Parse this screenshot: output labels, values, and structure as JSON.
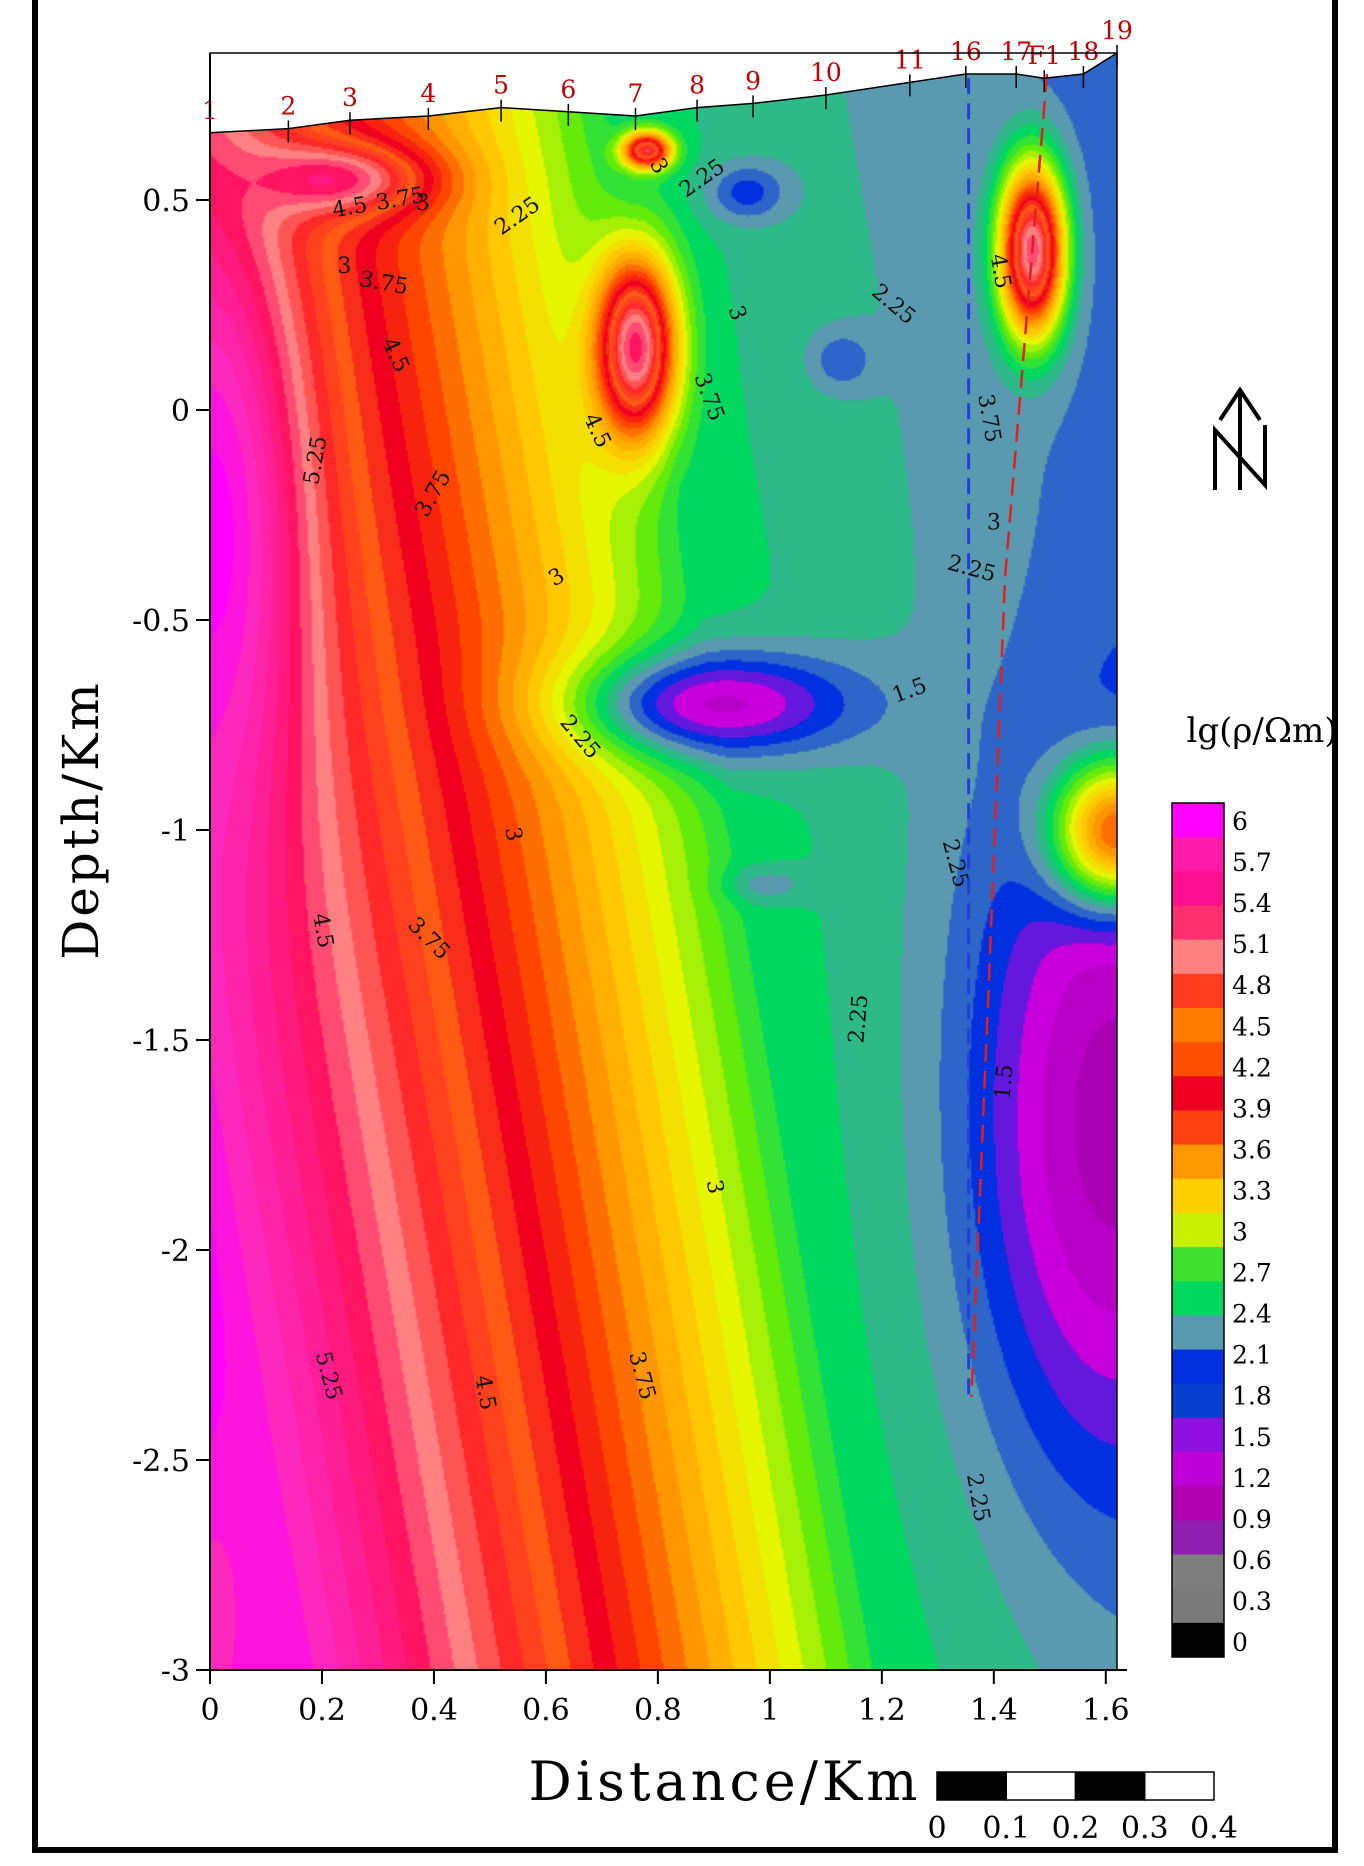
{
  "chart_data": {
    "type": "heatmap",
    "title": "",
    "xlabel": "Distance/Km",
    "ylabel": "Depth/Km",
    "xlim": [
      0,
      1.62
    ],
    "ylim": [
      -3,
      0.85
    ],
    "x_ticks": [
      "0",
      "0.2",
      "0.4",
      "0.6",
      "0.8",
      "1",
      "1.2",
      "1.4",
      "1.6"
    ],
    "x_tick_values": [
      0,
      0.2,
      0.4,
      0.6,
      0.8,
      1.0,
      1.2,
      1.4,
      1.6
    ],
    "y_ticks": [
      "0.5",
      "0",
      "-0.5",
      "-1",
      "-1.5",
      "-2",
      "-2.5",
      "-3"
    ],
    "y_tick_values": [
      0.5,
      0,
      -0.5,
      -1,
      -1.5,
      -2,
      -2.5,
      -3
    ],
    "colorbar": {
      "title": "lg(ρ/Ωm)",
      "labels": [
        "6",
        "5.7",
        "5.4",
        "5.1",
        "4.8",
        "4.5",
        "4.2",
        "3.9",
        "3.6",
        "3.3",
        "3",
        "2.7",
        "2.4",
        "2.1",
        "1.8",
        "1.5",
        "1.2",
        "0.9",
        "0.6",
        "0.3",
        "0"
      ],
      "colors": [
        "#ff00ff",
        "#ff1aa8",
        "#ff0f8f",
        "#ff2f6e",
        "#ff8080",
        "#ff3b1f",
        "#ff7a00",
        "#ff5000",
        "#f00020",
        "#ff4010",
        "#ff9800",
        "#ffd000",
        "#c8f000",
        "#40e030",
        "#00d860",
        "#5a9ab0",
        "#0030e0",
        "#0840d0",
        "#9010e0",
        "#c000d8",
        "#b000b0",
        "#9020b0",
        "#7f7f7f",
        "#7a7a7a",
        "#000000"
      ]
    },
    "stations": [
      "1",
      "2",
      "3",
      "4",
      "5",
      "6",
      "7",
      "8",
      "9",
      "10",
      "11",
      "16",
      "17",
      "F1",
      "18",
      "19"
    ],
    "station_x": [
      0,
      0.14,
      0.25,
      0.39,
      0.52,
      0.64,
      0.76,
      0.87,
      0.97,
      1.1,
      1.25,
      1.35,
      1.44,
      1.49,
      1.56,
      1.62
    ],
    "surface_elevation": [
      0.66,
      0.67,
      0.69,
      0.7,
      0.72,
      0.71,
      0.7,
      0.72,
      0.73,
      0.75,
      0.78,
      0.8,
      0.8,
      0.79,
      0.8,
      0.85
    ],
    "anomalies": [
      {
        "x": 0.0,
        "y": -0.3,
        "value": 6.0,
        "sx": 0.1,
        "sy": 0.5
      },
      {
        "x": 0.0,
        "y": -2.9,
        "value": 5.7,
        "sx": 0.08,
        "sy": 0.4
      },
      {
        "x": 0.2,
        "y": 0.55,
        "value": 5.2,
        "sx": 0.12,
        "sy": 0.06
      },
      {
        "x": 0.76,
        "y": 0.15,
        "value": 5.1,
        "sx": 0.05,
        "sy": 0.15
      },
      {
        "x": 1.47,
        "y": 0.38,
        "value": 5.0,
        "sx": 0.04,
        "sy": 0.14
      },
      {
        "x": 0.78,
        "y": 0.62,
        "value": 4.6,
        "sx": 0.03,
        "sy": 0.03
      },
      {
        "x": 0.96,
        "y": 0.52,
        "value": 1.5,
        "sx": 0.05,
        "sy": 0.05
      },
      {
        "x": 1.13,
        "y": 0.12,
        "value": 1.6,
        "sx": 0.04,
        "sy": 0.05
      },
      {
        "x": 0.92,
        "y": -0.7,
        "value": 1.1,
        "sx": 0.17,
        "sy": 0.09
      },
      {
        "x": 1.0,
        "y": -1.13,
        "value": 1.8,
        "sx": 0.05,
        "sy": 0.03
      },
      {
        "x": 1.62,
        "y": -1.7,
        "value": 0.9,
        "sx": 0.18,
        "sy": 0.6
      },
      {
        "x": 1.62,
        "y": -1.0,
        "value": 3.5,
        "sx": 0.08,
        "sy": 0.12
      }
    ],
    "contour_labels": [
      {
        "text": "4.5",
        "x": 0.25,
        "y": 0.48,
        "rot": -10
      },
      {
        "text": "3.75",
        "x": 0.34,
        "y": 0.5,
        "rot": -10
      },
      {
        "text": "3",
        "x": 0.38,
        "y": 0.49,
        "rot": 0
      },
      {
        "text": "2.25",
        "x": 0.55,
        "y": 0.46,
        "rot": -35
      },
      {
        "text": "2.25",
        "x": 0.88,
        "y": 0.55,
        "rot": -35
      },
      {
        "text": "3",
        "x": 0.8,
        "y": 0.58,
        "rot": 60
      },
      {
        "text": "3",
        "x": 0.24,
        "y": 0.34,
        "rot": 0
      },
      {
        "text": "3.75",
        "x": 0.31,
        "y": 0.3,
        "rot": 10
      },
      {
        "text": "4.5",
        "x": 0.33,
        "y": 0.13,
        "rot": 65
      },
      {
        "text": "5.25",
        "x": 0.19,
        "y": -0.12,
        "rot": -80
      },
      {
        "text": "3.75",
        "x": 0.4,
        "y": -0.2,
        "rot": -60
      },
      {
        "text": "4.5",
        "x": 0.69,
        "y": -0.05,
        "rot": 65
      },
      {
        "text": "3.75",
        "x": 0.89,
        "y": 0.03,
        "rot": 70
      },
      {
        "text": "3",
        "x": 0.94,
        "y": 0.23,
        "rot": 70
      },
      {
        "text": "2.25",
        "x": 1.22,
        "y": 0.25,
        "rot": 40
      },
      {
        "text": "4.5",
        "x": 1.41,
        "y": 0.33,
        "rot": 80
      },
      {
        "text": "3.75",
        "x": 1.39,
        "y": -0.02,
        "rot": 80
      },
      {
        "text": "3",
        "x": 1.4,
        "y": -0.27,
        "rot": 0
      },
      {
        "text": "2.25",
        "x": 1.36,
        "y": -0.38,
        "rot": 15
      },
      {
        "text": "3",
        "x": 0.62,
        "y": -0.4,
        "rot": -30
      },
      {
        "text": "1.5",
        "x": 1.25,
        "y": -0.67,
        "rot": -20
      },
      {
        "text": "2.25",
        "x": 0.66,
        "y": -0.78,
        "rot": 50
      },
      {
        "text": "3",
        "x": 0.54,
        "y": -1.01,
        "rot": 80
      },
      {
        "text": "2.25",
        "x": 1.33,
        "y": -1.08,
        "rot": 75
      },
      {
        "text": "4.5",
        "x": 0.2,
        "y": -1.24,
        "rot": 80
      },
      {
        "text": "3.75",
        "x": 0.39,
        "y": -1.26,
        "rot": 45
      },
      {
        "text": "2.25",
        "x": 1.16,
        "y": -1.45,
        "rot": -85
      },
      {
        "text": "1.5",
        "x": 1.42,
        "y": -1.6,
        "rot": -85
      },
      {
        "text": "3",
        "x": 0.9,
        "y": -1.85,
        "rot": 80
      },
      {
        "text": "5.25",
        "x": 0.21,
        "y": -2.3,
        "rot": 75
      },
      {
        "text": "4.5",
        "x": 0.49,
        "y": -2.34,
        "rot": 80
      },
      {
        "text": "3.75",
        "x": 0.77,
        "y": -2.3,
        "rot": 75
      },
      {
        "text": "2.25",
        "x": 1.37,
        "y": -2.59,
        "rot": 80
      }
    ],
    "fault_blue": {
      "x": 1.355,
      "y_top": 0.79,
      "y_bottom": -2.35
    },
    "fault_red": [
      {
        "x": 1.495,
        "y": 0.8
      },
      {
        "x": 1.42,
        "y": -0.4
      },
      {
        "x": 1.39,
        "y": -1.4
      },
      {
        "x": 1.36,
        "y": -2.35
      }
    ],
    "scale_bar": {
      "labels": [
        "0",
        "0.1",
        "0.2",
        "0.3",
        "0.4"
      ]
    },
    "north_label": "N"
  }
}
